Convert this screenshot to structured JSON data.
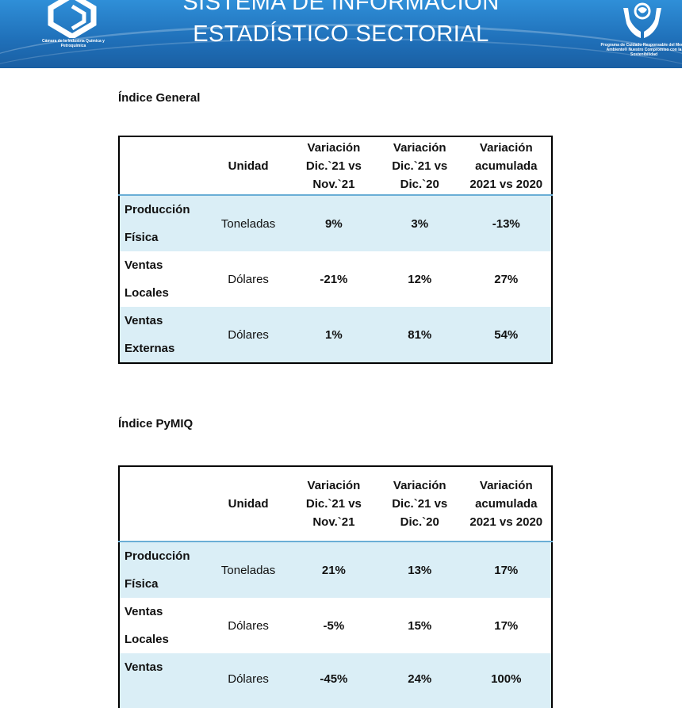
{
  "header": {
    "title_line1": "SISTEMA DE INFORMACIÓN",
    "title_line2": "ESTADÍSTICO SECTORIAL",
    "left_logo_caption": "Cámara de la Industria Química y Petroquímica",
    "right_logo_caption": "Programa de Cuidado Responsable del Medio Ambiente® Nuestro Compromiso con la Sostenibilidad"
  },
  "sections": [
    {
      "title": "Índice General",
      "headers": [
        "",
        "Unidad",
        "Variación Dic.`21 vs Nov.`21",
        "Variación Dic.`21 vs Dic.`20",
        "Variación acumulada 2021 vs 2020"
      ],
      "rows": [
        {
          "name": "Producción Física",
          "unit": "Toneladas",
          "v1": "9%",
          "v2": "3%",
          "v3": "-13%"
        },
        {
          "name": "Ventas Locales",
          "unit": "Dólares",
          "v1": "-21%",
          "v2": "12%",
          "v3": "27%"
        },
        {
          "name": "Ventas Externas",
          "unit": "Dólares",
          "v1": "1%",
          "v2": "81%",
          "v3": "54%"
        }
      ]
    },
    {
      "title": "Índice PyMIQ",
      "headers": [
        "",
        "Unidad",
        "Variación Dic.`21 vs Nov.`21",
        "Variación Dic.`21 vs Dic.`20",
        "Variación acumulada 2021 vs 2020"
      ],
      "rows": [
        {
          "name": "Producción Física",
          "unit": "Toneladas",
          "v1": "21%",
          "v2": "13%",
          "v3": "17%"
        },
        {
          "name": "Ventas Locales",
          "unit": "Dólares",
          "v1": "-5%",
          "v2": "15%",
          "v3": "17%"
        },
        {
          "name": "Ventas",
          "unit": "Dólares",
          "v1": "-45%",
          "v2": "24%",
          "v3": "100%"
        }
      ]
    }
  ],
  "colors": {
    "banner": "#1f6fb8",
    "row_shade": "#daeef6",
    "header_rule": "#6aaed6"
  }
}
